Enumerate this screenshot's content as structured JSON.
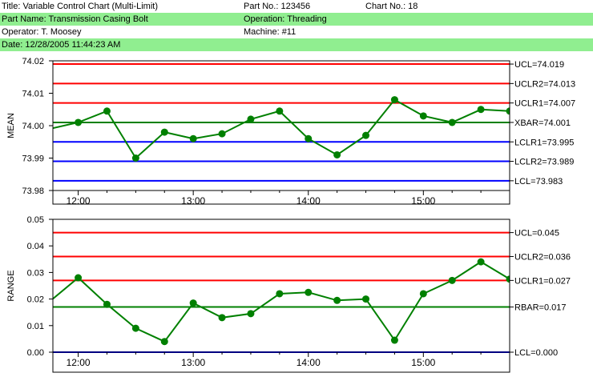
{
  "header": {
    "title": "Title: Variable Control Chart (Multi-Limit)",
    "part_no": "Part No.: 123456",
    "chart_no": "Chart No.: 18",
    "part_name": "Part Name: Transmission Casing Bolt",
    "operation": "Operation: Threading",
    "operator": "Operator: T. Moosey",
    "machine": "Machine: #11",
    "date": "Date: 12/28/2005 11:44:23 AM"
  },
  "colors": {
    "header_green": "#90ee90",
    "limit_red": "#ff0000",
    "limit_blue": "#0000ff",
    "center_green": "#008000",
    "series_green": "#008000"
  },
  "chart_data": [
    {
      "type": "line",
      "ylabel": "MEAN",
      "ylim": [
        73.98,
        74.02
      ],
      "yticks": [
        "73.98",
        "73.99",
        "74.00",
        "74.01",
        "74.02"
      ],
      "xlim": [
        11.78,
        15.75
      ],
      "xticks": [
        {
          "value": 12,
          "label": "12:00"
        },
        {
          "value": 13,
          "label": "13:00"
        },
        {
          "value": 14,
          "label": "14:00"
        },
        {
          "value": 15,
          "label": "15:00"
        }
      ],
      "grid": false,
      "series": [
        {
          "x": [
            11.75,
            12.0,
            12.25,
            12.5,
            12.75,
            13.0,
            13.25,
            13.5,
            13.75,
            14.0,
            14.25,
            14.5,
            14.75,
            15.0,
            15.25,
            15.5,
            15.75
          ],
          "values": [
            73.999,
            74.001,
            74.0045,
            73.99,
            73.998,
            73.996,
            73.9975,
            74.002,
            74.0045,
            73.996,
            73.991,
            73.997,
            74.008,
            74.003,
            74.001,
            74.005,
            74.0045
          ]
        }
      ],
      "limits": [
        {
          "label": "UCL=74.019",
          "value": 74.019,
          "color": "#ff0000"
        },
        {
          "label": "UCLR2=74.013",
          "value": 74.013,
          "color": "#ff0000"
        },
        {
          "label": "UCLR1=74.007",
          "value": 74.007,
          "color": "#ff0000"
        },
        {
          "label": "XBAR=74.001",
          "value": 74.001,
          "color": "#008000"
        },
        {
          "label": "LCLR1=73.995",
          "value": 73.995,
          "color": "#0000ff"
        },
        {
          "label": "LCLR2=73.989",
          "value": 73.989,
          "color": "#0000ff"
        },
        {
          "label": "LCL=73.983",
          "value": 73.983,
          "color": "#0000ff"
        }
      ]
    },
    {
      "type": "line",
      "ylabel": "RANGE",
      "ylim": [
        0,
        0.05
      ],
      "yticks": [
        "0.00",
        "0.01",
        "0.02",
        "0.03",
        "0.04",
        "0.05"
      ],
      "xlim": [
        11.78,
        15.75
      ],
      "xticks": [
        {
          "value": 12,
          "label": "12:00"
        },
        {
          "value": 13,
          "label": "13:00"
        },
        {
          "value": 14,
          "label": "14:00"
        },
        {
          "value": 15,
          "label": "15:00"
        }
      ],
      "grid": false,
      "series": [
        {
          "x": [
            11.75,
            12.0,
            12.25,
            12.5,
            12.75,
            13.0,
            13.25,
            13.5,
            13.75,
            14.0,
            14.25,
            14.5,
            14.75,
            15.0,
            15.25,
            15.5,
            15.75
          ],
          "values": [
            0.019,
            0.028,
            0.018,
            0.009,
            0.004,
            0.0185,
            0.013,
            0.0145,
            0.022,
            0.0225,
            0.0195,
            0.02,
            0.0045,
            0.022,
            0.027,
            0.034,
            0.0275
          ]
        }
      ],
      "limits": [
        {
          "label": "UCL=0.045",
          "value": 0.045,
          "color": "#ff0000"
        },
        {
          "label": "UCLR2=0.036",
          "value": 0.036,
          "color": "#ff0000"
        },
        {
          "label": "UCLR1=0.027",
          "value": 0.027,
          "color": "#ff0000"
        },
        {
          "label": "RBAR=0.017",
          "value": 0.017,
          "color": "#008000"
        },
        {
          "label": "LCL=0.000",
          "value": 0.0,
          "color": "#0000ff"
        }
      ]
    }
  ]
}
